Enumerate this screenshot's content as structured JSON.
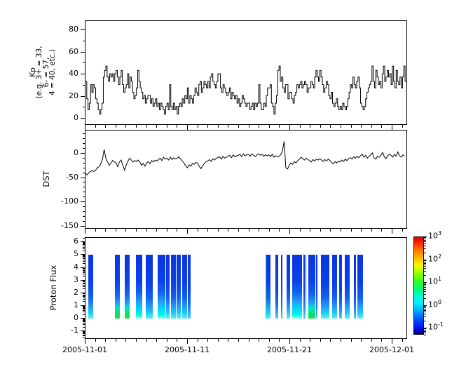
{
  "figure": {
    "background": "#ffffff",
    "line_color": "#000000"
  },
  "panels": {
    "kp": {
      "ylabel_lines": [
        "Kp",
        "(e.g. 3+ = 33,",
        "6- = 57,",
        "4 = 40, etc.)"
      ],
      "ytick_labels": [
        "80",
        "60",
        "40",
        "20",
        "0"
      ]
    },
    "dst": {
      "ylabel": "DST",
      "ytick_labels": [
        "0",
        "-50",
        "-100",
        "-150"
      ]
    },
    "proton": {
      "ylabel": "Proton Flux",
      "ytick_labels": [
        "6",
        "5",
        "4",
        "3",
        "2",
        "1",
        "0",
        "-1"
      ]
    }
  },
  "xaxis": {
    "tick_labels": [
      "2005-11-01",
      "2005-11-11",
      "2005-11-21",
      "2005-12-01"
    ],
    "major_tick_days": [
      1,
      11,
      21,
      31
    ],
    "minor_tick_step_days": 1
  },
  "colorbar": {
    "labels": [
      {
        "base": "10",
        "exp": "3"
      },
      {
        "base": "10",
        "exp": "2"
      },
      {
        "base": "10",
        "exp": "1"
      },
      {
        "base": "10",
        "exp": "0"
      },
      {
        "base": "10",
        "exp": "-1"
      }
    ],
    "scale": "log",
    "colors_top_to_bottom": [
      "#d60000",
      "#ff8c00",
      "#fff200",
      "#7dff00",
      "#2eff25",
      "#00ffc8",
      "#00f4ff",
      "#0080ff",
      "#0040ff",
      "#000088"
    ]
  },
  "chart_data": [
    {
      "type": "line",
      "subtype": "step",
      "panel": "kp",
      "ylabel": "Kp (e.g. 3+ = 33, 6- = 57, 4 = 40, etc.)",
      "x_start": "2005-11-01T00:00",
      "x_step_hours": 3,
      "xlim": [
        "2005-11-01",
        "2005-12-02T12:00"
      ],
      "ylim": [
        -6,
        88
      ],
      "yticks": [
        0,
        20,
        40,
        60,
        80
      ],
      "values": [
        33,
        17,
        7,
        13,
        30,
        23,
        30,
        27,
        17,
        13,
        7,
        3,
        7,
        13,
        37,
        43,
        47,
        37,
        33,
        40,
        37,
        40,
        33,
        40,
        43,
        37,
        30,
        37,
        43,
        30,
        23,
        27,
        30,
        40,
        27,
        37,
        33,
        23,
        17,
        20,
        27,
        43,
        33,
        27,
        23,
        17,
        20,
        13,
        17,
        20,
        20,
        13,
        17,
        10,
        13,
        17,
        10,
        13,
        7,
        13,
        10,
        7,
        3,
        10,
        13,
        7,
        30,
        10,
        7,
        13,
        7,
        10,
        3,
        10,
        13,
        10,
        17,
        13,
        20,
        17,
        27,
        13,
        20,
        17,
        13,
        20,
        27,
        23,
        20,
        30,
        33,
        23,
        27,
        33,
        30,
        27,
        33,
        27,
        37,
        40,
        33,
        30,
        27,
        33,
        40,
        40,
        27,
        23,
        30,
        27,
        23,
        20,
        23,
        27,
        17,
        23,
        20,
        17,
        20,
        13,
        17,
        10,
        13,
        20,
        17,
        13,
        10,
        13,
        13,
        7,
        10,
        13,
        7,
        13,
        10,
        13,
        30,
        13,
        7,
        7,
        13,
        10,
        20,
        27,
        27,
        30,
        13,
        10,
        3,
        13,
        20,
        43,
        47,
        33,
        37,
        27,
        23,
        30,
        30,
        17,
        23,
        23,
        17,
        13,
        20,
        23,
        30,
        27,
        30,
        33,
        27,
        30,
        33,
        30,
        23,
        27,
        27,
        33,
        30,
        27,
        37,
        43,
        37,
        33,
        43,
        37,
        30,
        23,
        27,
        33,
        30,
        20,
        17,
        23,
        13,
        10,
        13,
        17,
        10,
        7,
        10,
        7,
        13,
        10,
        7,
        10,
        17,
        23,
        30,
        27,
        37,
        30,
        27,
        33,
        37,
        27,
        13,
        10,
        7,
        10,
        17,
        23,
        27,
        30,
        33,
        47,
        33,
        27,
        43,
        37,
        30,
        33,
        27,
        40,
        47,
        33,
        37,
        43,
        37,
        40,
        30,
        47,
        33,
        27,
        43,
        33,
        30,
        37,
        27,
        37,
        47,
        33
      ]
    },
    {
      "type": "line",
      "panel": "dst",
      "ylabel": "DST",
      "x_start": "2005-11-01T00:00",
      "x_step_hours": 4,
      "ylim": [
        -156,
        48
      ],
      "yticks": [
        0,
        -50,
        -100,
        -150
      ],
      "values": [
        -42,
        -45,
        -40,
        -38,
        -36,
        -38,
        -35,
        -30,
        -28,
        -22,
        -12,
        8,
        -10,
        -18,
        -25,
        -20,
        -15,
        -18,
        -20,
        -28,
        -18,
        -14,
        -25,
        -35,
        -25,
        -16,
        -10,
        -14,
        -18,
        -15,
        -17,
        -14,
        -18,
        -25,
        -21,
        -27,
        -20,
        -17,
        -22,
        -15,
        -18,
        -14,
        -16,
        -13,
        -10,
        -15,
        -8,
        -12,
        -10,
        -14,
        -8,
        -13,
        -9,
        -12,
        -10,
        -7,
        -12,
        -16,
        -20,
        -26,
        -30,
        -24,
        -27,
        -21,
        -23,
        -19,
        -20,
        -27,
        -32,
        -26,
        -21,
        -18,
        -16,
        -13,
        -17,
        -11,
        -14,
        -10,
        -9,
        -7,
        -12,
        -6,
        -10,
        -8,
        -6,
        -4,
        -9,
        -3,
        -7,
        -5,
        -4,
        -2,
        -7,
        -1,
        -5,
        -3,
        -2,
        -6,
        -1,
        -4,
        -7,
        -3,
        -1,
        -4,
        -2,
        -6,
        -3,
        -5,
        -3,
        -7,
        -2,
        -8,
        -5,
        -7,
        -6,
        -3,
        5,
        25,
        -30,
        -33,
        -25,
        -20,
        -23,
        -17,
        -20,
        -15,
        -12,
        -8,
        -11,
        -14,
        -10,
        -13,
        -15,
        -18,
        -13,
        -16,
        -12,
        -14,
        -11,
        -14,
        -17,
        -13,
        -16,
        -12,
        -15,
        -19,
        -22,
        -17,
        -20,
        -16,
        -18,
        -14,
        -17,
        -12,
        -15,
        -11,
        -9,
        -12,
        -7,
        -10,
        -6,
        -9,
        -5,
        -2,
        -8,
        -4,
        -10,
        -6,
        -3,
        1,
        -9,
        -12,
        -6,
        -8,
        -4,
        2,
        -7,
        -11,
        -5,
        -2,
        -4,
        -8,
        -2,
        -6,
        3,
        -5,
        -8,
        -3,
        -6
      ]
    },
    {
      "type": "heatmap",
      "panel": "proton_flux",
      "ylabel": "Proton Flux",
      "note": "vertical color bars spanning y=0 to y=5 (log10 exponent axis); color encodes flux per colorbar 10^-1..10^3",
      "ylim": [
        -1.7,
        6.4
      ],
      "yticks": [
        6,
        5,
        4,
        3,
        2,
        1,
        0,
        -1
      ],
      "bar_y_range": [
        0,
        5
      ],
      "bars": [
        {
          "day_start": 1.25,
          "day_end": 1.75,
          "palette": "cyan"
        },
        {
          "day_start": 3.88,
          "day_end": 4.33,
          "palette": "green"
        },
        {
          "day_start": 4.86,
          "day_end": 5.31,
          "palette": "green"
        },
        {
          "day_start": 5.93,
          "day_end": 6.55,
          "palette": "bright"
        },
        {
          "day_start": 6.89,
          "day_end": 7.58,
          "palette": "cyan"
        },
        {
          "day_start": 8.05,
          "day_end": 8.82,
          "palette": "bright"
        },
        {
          "day_start": 8.88,
          "day_end": 9.19,
          "palette": "cyan"
        },
        {
          "day_start": 9.38,
          "day_end": 9.81,
          "palette": "cyan"
        },
        {
          "day_start": 9.88,
          "day_end": 10.34,
          "palette": "cyan"
        },
        {
          "day_start": 10.47,
          "day_end": 10.91,
          "palette": "cyan"
        },
        {
          "day_start": 11.02,
          "day_end": 11.25,
          "palette": "blue"
        },
        {
          "day_start": 18.6,
          "day_end": 18.69,
          "palette": "greenstripe"
        },
        {
          "day_start": 18.69,
          "day_end": 19.08,
          "palette": "cyan"
        },
        {
          "day_start": 19.56,
          "day_end": 19.84,
          "palette": "blue"
        },
        {
          "day_start": 20.13,
          "day_end": 20.24,
          "palette": "blue"
        },
        {
          "day_start": 20.66,
          "day_end": 21.0,
          "palette": "cyan"
        },
        {
          "day_start": 21.2,
          "day_end": 22.16,
          "palette": "bright"
        },
        {
          "day_start": 22.3,
          "day_end": 22.44,
          "palette": "blue"
        },
        {
          "day_start": 22.5,
          "day_end": 22.58,
          "palette": "blue"
        },
        {
          "day_start": 22.8,
          "day_end": 23.46,
          "palette": "green"
        },
        {
          "day_start": 23.55,
          "day_end": 23.65,
          "palette": "blue"
        },
        {
          "day_start": 24.03,
          "day_end": 24.85,
          "palette": "cyan"
        },
        {
          "day_start": 25.13,
          "day_end": 25.59,
          "palette": "cyan"
        },
        {
          "day_start": 25.81,
          "day_end": 26.09,
          "palette": "blue"
        },
        {
          "day_start": 26.36,
          "day_end": 26.8,
          "palette": "cyan"
        },
        {
          "day_start": 27.23,
          "day_end": 27.42,
          "palette": "blue"
        },
        {
          "day_start": 27.59,
          "day_end": 28.1,
          "palette": "cyan"
        }
      ],
      "colorbar_tick_labels": [
        "10^3",
        "10^2",
        "10^1",
        "10^0",
        "10^-1"
      ]
    }
  ]
}
